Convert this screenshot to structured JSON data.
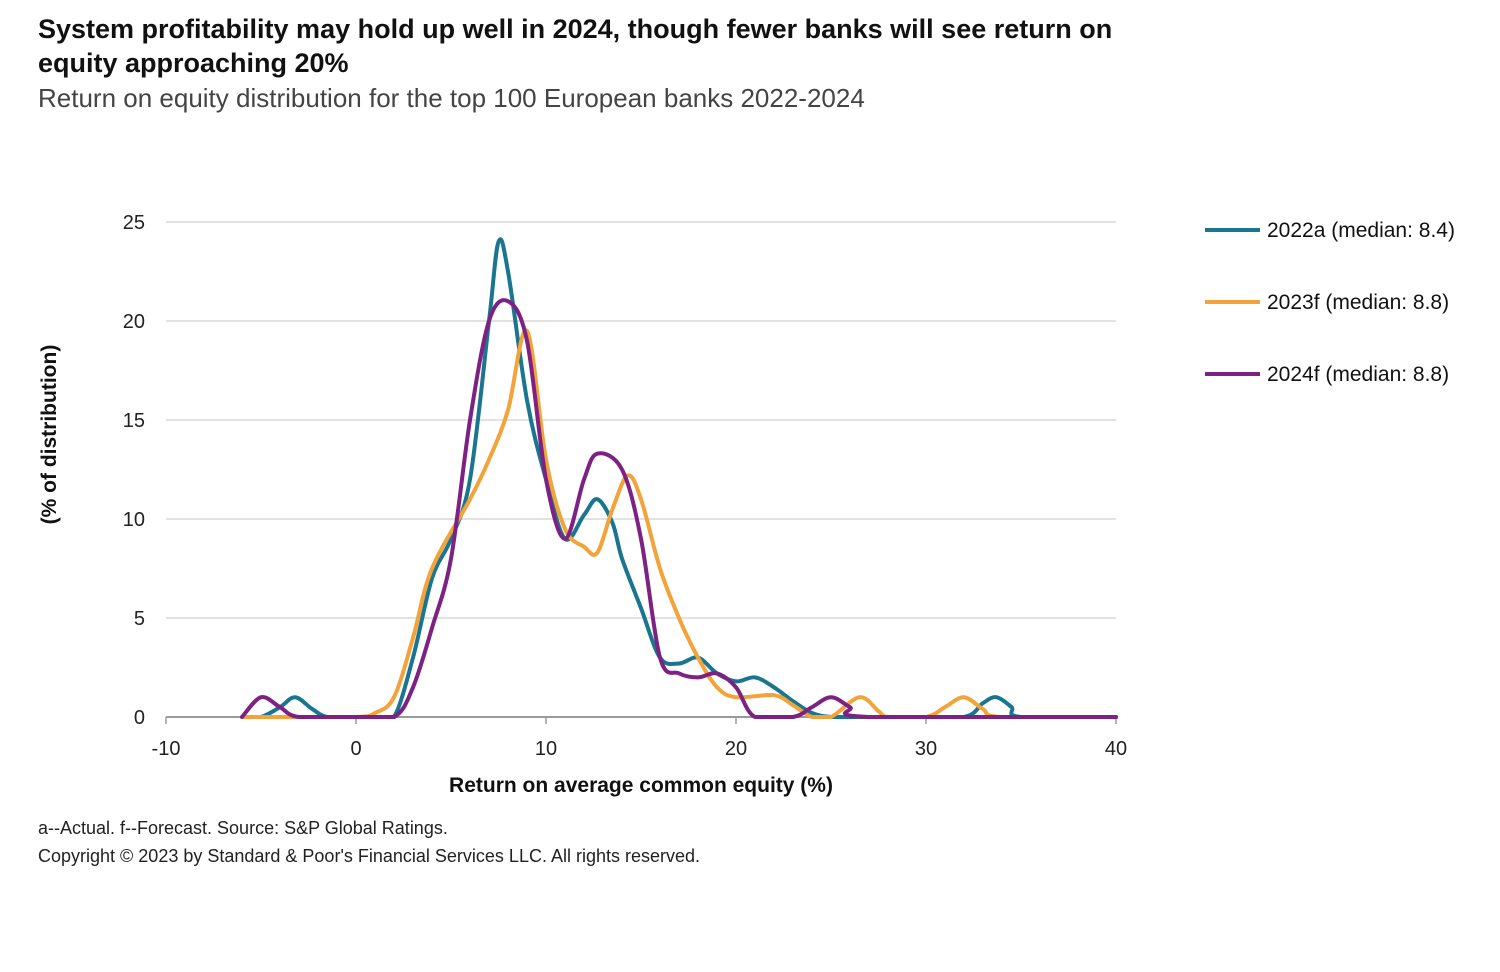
{
  "header": {
    "title": "System profitability may hold up well in 2024, though fewer banks will see return on equity approaching 20%",
    "subtitle": "Return on equity distribution for the top 100 European banks 2022-2024"
  },
  "footer": {
    "note": "a--Actual. f--Forecast. Source: S&P Global Ratings.",
    "copyright": "Copyright © 2023 by Standard & Poor's Financial Services LLC. All rights reserved."
  },
  "chart_data": {
    "type": "line",
    "title": "System profitability may hold up well in 2024, though fewer banks will see return on equity approaching 20%",
    "subtitle": "Return on equity distribution for the top 100 European banks 2022-2024",
    "xlabel": "Return on average common equity (%)",
    "ylabel": "(% of distribution)",
    "xlim": [
      -10,
      40
    ],
    "ylim": [
      0,
      25
    ],
    "xticks": [
      -10,
      0,
      10,
      20,
      30,
      40
    ],
    "yticks": [
      0,
      5,
      10,
      15,
      20,
      25
    ],
    "grid": "horizontal",
    "legend_position": "right",
    "series": [
      {
        "name": "2022a (median: 8.4)",
        "color": "#1a7590",
        "points": [
          [
            -6,
            0
          ],
          [
            -5,
            0
          ],
          [
            -4,
            0.5
          ],
          [
            -3.2,
            1
          ],
          [
            -2.3,
            0.4
          ],
          [
            -1.5,
            0
          ],
          [
            0,
            0
          ],
          [
            1,
            0
          ],
          [
            2,
            0
          ],
          [
            3,
            3
          ],
          [
            4,
            7
          ],
          [
            5,
            9
          ],
          [
            6,
            12
          ],
          [
            7,
            20
          ],
          [
            7.5,
            24
          ],
          [
            8,
            22.5
          ],
          [
            9,
            16
          ],
          [
            10,
            12
          ],
          [
            11,
            9
          ],
          [
            12,
            10.2
          ],
          [
            12.7,
            11
          ],
          [
            13.5,
            9.8
          ],
          [
            14,
            8
          ],
          [
            15,
            5.5
          ],
          [
            16,
            3
          ],
          [
            17,
            2.7
          ],
          [
            18,
            3
          ],
          [
            19,
            2.2
          ],
          [
            20,
            1.8
          ],
          [
            21,
            2
          ],
          [
            22,
            1.5
          ],
          [
            23,
            0.8
          ],
          [
            24,
            0.2
          ],
          [
            25,
            0
          ],
          [
            26.5,
            0
          ],
          [
            29,
            0
          ],
          [
            32,
            0
          ],
          [
            33,
            0.7
          ],
          [
            33.7,
            1
          ],
          [
            34.5,
            0.5
          ],
          [
            35,
            0
          ],
          [
            40,
            0
          ]
        ]
      },
      {
        "name": "2023f (median: 8.8)",
        "color": "#f2a33a",
        "points": [
          [
            -6,
            0
          ],
          [
            -4,
            0
          ],
          [
            0,
            0
          ],
          [
            1,
            0.2
          ],
          [
            2,
            1
          ],
          [
            3,
            4
          ],
          [
            4,
            7.5
          ],
          [
            6,
            11
          ],
          [
            7,
            13
          ],
          [
            8,
            15.5
          ],
          [
            9,
            19.5
          ],
          [
            10,
            13
          ],
          [
            11,
            9.5
          ],
          [
            12,
            8.6
          ],
          [
            12.7,
            8.3
          ],
          [
            13.5,
            10.5
          ],
          [
            14.3,
            12.2
          ],
          [
            15,
            11
          ],
          [
            16,
            7.5
          ],
          [
            17,
            5
          ],
          [
            18,
            3
          ],
          [
            19,
            1.5
          ],
          [
            20,
            1
          ],
          [
            22,
            1.1
          ],
          [
            23,
            0.6
          ],
          [
            24,
            0
          ],
          [
            25,
            0
          ],
          [
            26.5,
            1
          ],
          [
            27.5,
            0.3
          ],
          [
            28,
            0
          ],
          [
            30,
            0
          ],
          [
            31,
            0.5
          ],
          [
            32,
            1
          ],
          [
            33,
            0.4
          ],
          [
            34,
            0
          ],
          [
            40,
            0
          ]
        ]
      },
      {
        "name": "2024f (median: 8.8)",
        "color": "#7d2182",
        "points": [
          [
            -6,
            0
          ],
          [
            -5,
            1
          ],
          [
            -4,
            0.5
          ],
          [
            -3,
            0
          ],
          [
            0,
            0
          ],
          [
            2,
            0
          ],
          [
            3,
            1.5
          ],
          [
            4,
            4.5
          ],
          [
            5,
            8
          ],
          [
            6,
            15
          ],
          [
            7,
            20
          ],
          [
            8,
            21
          ],
          [
            9,
            19
          ],
          [
            10,
            12
          ],
          [
            11,
            9
          ],
          [
            12,
            12
          ],
          [
            12.7,
            13.3
          ],
          [
            14,
            12.5
          ],
          [
            15,
            9
          ],
          [
            16,
            3
          ],
          [
            17,
            2.2
          ],
          [
            18,
            2
          ],
          [
            19,
            2.2
          ],
          [
            20,
            1.5
          ],
          [
            21,
            0
          ],
          [
            23,
            0
          ],
          [
            24,
            0.5
          ],
          [
            25,
            1
          ],
          [
            26,
            0.5
          ],
          [
            27,
            0
          ],
          [
            40,
            0
          ]
        ]
      }
    ]
  }
}
